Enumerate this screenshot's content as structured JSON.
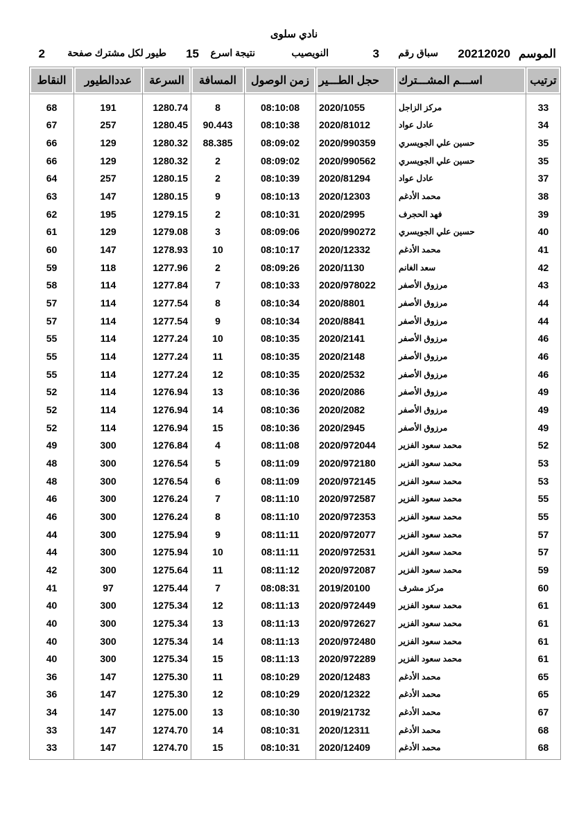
{
  "title": "نادي سلوى",
  "info": {
    "season_label": "الموسم",
    "season": "20212020",
    "race_label": "سباق رقم",
    "race_no": "3",
    "location": "النويصيب",
    "result_label": "نتيجة اسرع",
    "birds_count": "15",
    "per_label": "طيور لكل مشترك صفحة",
    "page": "2"
  },
  "columns": [
    "ترتيب",
    "اســـم المشـــترك",
    "حجل الطـــير",
    "زمن الوصول",
    "المسافة",
    "السرعة",
    "عددالطيور",
    "النقاط"
  ],
  "rows": [
    [
      "33",
      "مركز الزاجل",
      "2020/1055",
      "08:10:08",
      "8",
      "1280.74",
      "191",
      "68"
    ],
    [
      "34",
      "عادل عواد",
      "2020/81012",
      "08:10:38",
      "90.443",
      "1280.45",
      "257",
      "67"
    ],
    [
      "35",
      "حسين علي الجويسري",
      "2020/990359",
      "08:09:02",
      "88.385",
      "1280.32",
      "129",
      "66"
    ],
    [
      "35",
      "حسين علي الجويسري",
      "2020/990562",
      "08:09:02",
      "2",
      "1280.32",
      "129",
      "66"
    ],
    [
      "37",
      "عادل عواد",
      "2020/81294",
      "08:10:39",
      "2",
      "1280.15",
      "257",
      "64"
    ],
    [
      "38",
      "محمد الأدغم",
      "2020/12303",
      "08:10:13",
      "9",
      "1280.15",
      "147",
      "63"
    ],
    [
      "39",
      "فهد الحجرف",
      "2020/2995",
      "08:10:31",
      "2",
      "1279.15",
      "195",
      "62"
    ],
    [
      "40",
      "حسين علي الجويسري",
      "2020/990272",
      "08:09:06",
      "3",
      "1279.08",
      "129",
      "61"
    ],
    [
      "41",
      "محمد الأدغم",
      "2020/12332",
      "08:10:17",
      "10",
      "1278.93",
      "147",
      "60"
    ],
    [
      "42",
      "سعد الغانم",
      "2020/1130",
      "08:09:26",
      "2",
      "1277.96",
      "118",
      "59"
    ],
    [
      "43",
      "مرزوق الأصفر",
      "2020/978022",
      "08:10:33",
      "7",
      "1277.84",
      "114",
      "58"
    ],
    [
      "44",
      "مرزوق الأصفر",
      "2020/8801",
      "08:10:34",
      "8",
      "1277.54",
      "114",
      "57"
    ],
    [
      "44",
      "مرزوق الأصفر",
      "2020/8841",
      "08:10:34",
      "9",
      "1277.54",
      "114",
      "57"
    ],
    [
      "46",
      "مرزوق الأصفر",
      "2020/2141",
      "08:10:35",
      "10",
      "1277.24",
      "114",
      "55"
    ],
    [
      "46",
      "مرزوق الأصفر",
      "2020/2148",
      "08:10:35",
      "11",
      "1277.24",
      "114",
      "55"
    ],
    [
      "46",
      "مرزوق الأصفر",
      "2020/2532",
      "08:10:35",
      "12",
      "1277.24",
      "114",
      "55"
    ],
    [
      "49",
      "مرزوق الأصفر",
      "2020/2086",
      "08:10:36",
      "13",
      "1276.94",
      "114",
      "52"
    ],
    [
      "49",
      "مرزوق الأصفر",
      "2020/2082",
      "08:10:36",
      "14",
      "1276.94",
      "114",
      "52"
    ],
    [
      "49",
      "مرزوق الأصفر",
      "2020/2945",
      "08:10:36",
      "15",
      "1276.94",
      "114",
      "52"
    ],
    [
      "52",
      "محمد سعود الفزير",
      "2020/972044",
      "08:11:08",
      "4",
      "1276.84",
      "300",
      "49"
    ],
    [
      "53",
      "محمد سعود الفزير",
      "2020/972180",
      "08:11:09",
      "5",
      "1276.54",
      "300",
      "48"
    ],
    [
      "53",
      "محمد سعود الفزير",
      "2020/972145",
      "08:11:09",
      "6",
      "1276.54",
      "300",
      "48"
    ],
    [
      "55",
      "محمد سعود الفزير",
      "2020/972587",
      "08:11:10",
      "7",
      "1276.24",
      "300",
      "46"
    ],
    [
      "55",
      "محمد سعود الفزير",
      "2020/972353",
      "08:11:10",
      "8",
      "1276.24",
      "300",
      "46"
    ],
    [
      "57",
      "محمد سعود الفزير",
      "2020/972077",
      "08:11:11",
      "9",
      "1275.94",
      "300",
      "44"
    ],
    [
      "57",
      "محمد سعود الفزير",
      "2020/972531",
      "08:11:11",
      "10",
      "1275.94",
      "300",
      "44"
    ],
    [
      "59",
      "محمد سعود الفزير",
      "2020/972087",
      "08:11:12",
      "11",
      "1275.64",
      "300",
      "42"
    ],
    [
      "60",
      "مركز مشرف",
      "2019/20100",
      "08:08:31",
      "7",
      "1275.44",
      "97",
      "41"
    ],
    [
      "61",
      "محمد سعود الفزير",
      "2020/972449",
      "08:11:13",
      "12",
      "1275.34",
      "300",
      "40"
    ],
    [
      "61",
      "محمد سعود الفزير",
      "2020/972627",
      "08:11:13",
      "13",
      "1275.34",
      "300",
      "40"
    ],
    [
      "61",
      "محمد سعود الفزير",
      "2020/972480",
      "08:11:13",
      "14",
      "1275.34",
      "300",
      "40"
    ],
    [
      "61",
      "محمد سعود الفزير",
      "2020/972289",
      "08:11:13",
      "15",
      "1275.34",
      "300",
      "40"
    ],
    [
      "65",
      "محمد الأدغم",
      "2020/12483",
      "08:10:29",
      "11",
      "1275.30",
      "147",
      "36"
    ],
    [
      "65",
      "محمد الأدغم",
      "2020/12322",
      "08:10:29",
      "12",
      "1275.30",
      "147",
      "36"
    ],
    [
      "67",
      "محمد الأدغم",
      "2019/21732",
      "08:10:30",
      "13",
      "1275.00",
      "147",
      "34"
    ],
    [
      "68",
      "محمد الأدغم",
      "2020/12311",
      "08:10:31",
      "14",
      "1274.70",
      "147",
      "33"
    ],
    [
      "68",
      "محمد الأدغم",
      "2020/12409",
      "08:10:31",
      "15",
      "1274.70",
      "147",
      "33"
    ]
  ]
}
